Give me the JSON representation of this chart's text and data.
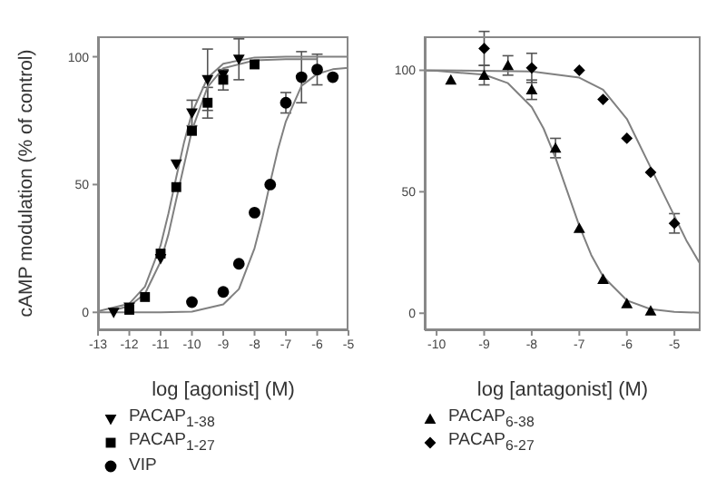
{
  "chart_data": [
    {
      "type": "scatter",
      "ylabel": "cAMP modulation (% of control)",
      "xlabel": "log [agonist] (M)",
      "xlim": [
        -13,
        -5
      ],
      "ylim": [
        -7,
        108
      ],
      "xticks": [
        -13,
        -12,
        -11,
        -10,
        -9,
        -8,
        -7,
        -6,
        -5
      ],
      "yticks": [
        0,
        50,
        100
      ],
      "legend": "bottom",
      "series": [
        {
          "name": "PACAP$_{1-38}$",
          "color": "#000000",
          "marker": "triangle-down",
          "x": [
            -12.5,
            -12,
            -11,
            -10.5,
            -10,
            -9.5,
            -9,
            -8.5
          ],
          "values": [
            0,
            2,
            21,
            58,
            78,
            91,
            93,
            99
          ],
          "errors": [
            null,
            null,
            null,
            null,
            5,
            12,
            null,
            8
          ]
        },
        {
          "name": "PACAP$_{1-27}$",
          "color": "#000000",
          "marker": "square",
          "x": [
            -12,
            -11.5,
            -11,
            -10.5,
            -10,
            -9.5,
            -9,
            -8
          ],
          "values": [
            1,
            6,
            23,
            49,
            71,
            82,
            91,
            97
          ],
          "errors": [
            null,
            null,
            null,
            null,
            null,
            6,
            4,
            null
          ]
        },
        {
          "name": "VIP",
          "color": "#000000",
          "marker": "circle",
          "x": [
            -10,
            -9,
            -8.5,
            -8,
            -7.5,
            -7,
            -6.5,
            -6,
            -5.5
          ],
          "values": [
            4,
            8,
            19,
            39,
            50,
            82,
            92,
            95,
            92
          ],
          "errors": [
            null,
            null,
            null,
            null,
            null,
            4,
            10,
            6,
            null
          ]
        },
        {
          "type": "line",
          "color": "#808080",
          "x": [
            -13,
            -12,
            -11.5,
            -11,
            -10.75,
            -10.5,
            -10.25,
            -10,
            -9.5,
            -9,
            -8,
            -7,
            -6,
            -5
          ],
          "values": [
            0.4,
            3.4,
            10.1,
            26.2,
            38.7,
            52.9,
            66.6,
            78,
            91.8,
            97.3,
            99.7,
            100,
            100,
            100
          ]
        },
        {
          "type": "line",
          "color": "#808080",
          "x": [
            -12.5,
            -12,
            -11.5,
            -11,
            -10.75,
            -10.5,
            -10.25,
            -10,
            -9.5,
            -9,
            -8,
            -7,
            -6
          ],
          "values": [
            0.8,
            2.5,
            7.3,
            19.9,
            30.5,
            44.2,
            57.7,
            71.2,
            88.2,
            95.5,
            98.6,
            99,
            99
          ]
        },
        {
          "type": "line",
          "color": "#808080",
          "x": [
            -13,
            -11,
            -10,
            -9,
            -8.5,
            -8,
            -7.75,
            -7.5,
            -7.25,
            -7,
            -6.5,
            -6,
            -5.5,
            -5
          ],
          "values": [
            0,
            0,
            0.3,
            3.1,
            9.1,
            25.1,
            37,
            50.8,
            63.9,
            74.7,
            88.6,
            93.3,
            95.1,
            95.7
          ]
        }
      ]
    },
    {
      "type": "scatter",
      "xlabel": "log [antagonist] (M)",
      "xlim": [
        -10.25,
        -4.45
      ],
      "ylim": [
        -7,
        114
      ],
      "xticks": [
        -10,
        -9,
        -8,
        -7,
        -6,
        -5
      ],
      "yticks": [
        0,
        50,
        100
      ],
      "legend": "bottom",
      "series": [
        {
          "name": "PACAP$_{6-38}$",
          "color": "#000000",
          "marker": "triangle",
          "x": [
            -9.7,
            -9,
            -8.5,
            -8,
            -7.5,
            -7,
            -6.5,
            -6,
            -5.5
          ],
          "values": [
            96,
            98,
            102,
            92,
            68,
            35,
            14,
            4,
            1
          ],
          "errors": [
            null,
            4,
            4,
            4,
            4,
            null,
            null,
            null,
            null
          ]
        },
        {
          "name": "PACAP$_{6-27}$",
          "color": "#000000",
          "marker": "diamond",
          "x": [
            -9,
            -8,
            -7,
            -6.5,
            -6,
            -5.5,
            -5
          ],
          "values": [
            109,
            101,
            100,
            88,
            72,
            58,
            37
          ],
          "errors": [
            7,
            6,
            null,
            null,
            null,
            null,
            4
          ]
        },
        {
          "type": "line",
          "color": "#808080",
          "x": [
            -10.25,
            -10,
            -9,
            -8.5,
            -8,
            -7.75,
            -7.5,
            -7.25,
            -7,
            -6.75,
            -6.5,
            -6,
            -5.5,
            -5,
            -4.45
          ],
          "values": [
            99.9,
            99.8,
            98.2,
            94.7,
            84.9,
            76,
            64,
            50,
            36,
            24,
            15.1,
            5.3,
            1.7,
            0.6,
            0.2
          ]
        },
        {
          "type": "line",
          "color": "#808080",
          "x": [
            -10.25,
            -10,
            -8,
            -7,
            -6.5,
            -6,
            -5.5,
            -5,
            -4.75,
            -4.45
          ],
          "values": [
            100,
            100,
            99.5,
            97,
            92,
            80,
            60,
            40,
            30,
            20
          ]
        }
      ]
    }
  ]
}
